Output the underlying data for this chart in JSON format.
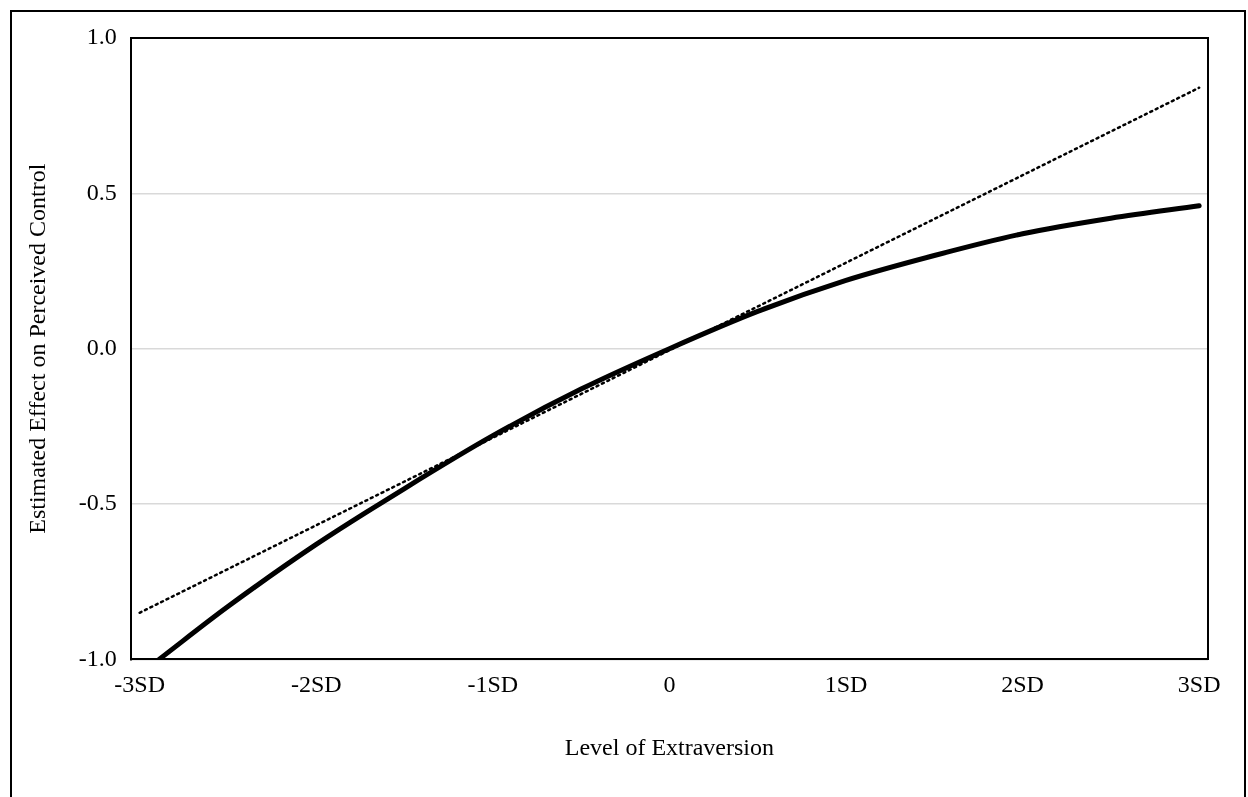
{
  "chart_data": {
    "type": "line",
    "xlabel": "Level of Extraversion",
    "ylabel": "Estimated Effect on Perceived Control",
    "xlim": [
      -3.05,
      3.05
    ],
    "xticks": [
      {
        "value": -3,
        "label": "-3SD"
      },
      {
        "value": -2,
        "label": "-2SD"
      },
      {
        "value": -1,
        "label": "-1SD"
      },
      0,
      {
        "value": 1,
        "label": "1SD"
      },
      {
        "value": 2,
        "label": "2SD"
      },
      {
        "value": 3,
        "label": "3SD"
      }
    ],
    "ylim": [
      -1,
      1
    ],
    "yticks": [
      {
        "value": -1,
        "label": "-1.0"
      },
      {
        "value": -0.5,
        "label": "-0.5"
      },
      {
        "value": 0,
        "label": "0.0"
      },
      {
        "value": 0.5,
        "label": "0.5"
      },
      {
        "value": 1,
        "label": "1.0"
      }
    ],
    "grid": "y",
    "legend": false,
    "marker": "none",
    "series": [
      {
        "type": "line",
        "color": "#000000",
        "line_style": "solid",
        "x": [
          -2.89,
          -2.5,
          -2,
          -1.5,
          -1,
          -0.5,
          0,
          0.5,
          1,
          1.5,
          2,
          2.5,
          3
        ],
        "values": [
          -1.0,
          -0.83,
          -0.63,
          -0.45,
          -0.28,
          -0.13,
          0,
          0.12,
          0.22,
          0.3,
          0.37,
          0.42,
          0.46
        ]
      },
      {
        "type": "line",
        "color": "#000000",
        "line_style": "dotted",
        "x": [
          -3,
          3
        ],
        "values": [
          -0.85,
          0.84
        ]
      }
    ]
  }
}
